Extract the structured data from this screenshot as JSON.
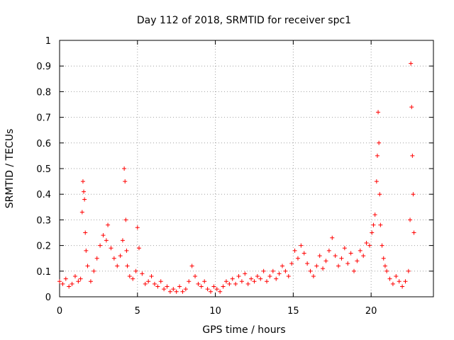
{
  "chart_data": {
    "type": "scatter",
    "title": "Day 112 of 2018, SRMTID for receiver spc1",
    "xlabel": "GPS time / hours",
    "ylabel": "SRMTID / TECUs",
    "xlim": [
      0,
      24
    ],
    "ylim": [
      0,
      1
    ],
    "x_ticks": [
      0,
      5,
      10,
      15,
      20
    ],
    "x_tick_labels": [
      "0",
      "5",
      "10",
      "15",
      "20"
    ],
    "y_ticks": [
      0,
      0.1,
      0.2,
      0.3,
      0.4,
      0.5,
      0.6,
      0.7,
      0.8,
      0.9,
      1
    ],
    "y_tick_labels": [
      "0",
      "0.1",
      "0.2",
      "0.3",
      "0.4",
      "0.5",
      "0.6",
      "0.7",
      "0.8",
      "0.9",
      "1"
    ],
    "grid": true,
    "marker": "+",
    "color": "#ff0000",
    "series": [
      {
        "name": "spc1",
        "x": [
          0.0,
          0.2,
          0.4,
          0.6,
          0.8,
          1.0,
          1.2,
          1.35,
          1.45,
          1.5,
          1.55,
          1.6,
          1.65,
          1.7,
          1.8,
          2.0,
          2.2,
          2.4,
          2.6,
          2.8,
          3.0,
          3.1,
          3.3,
          3.5,
          3.7,
          3.9,
          4.05,
          4.15,
          4.2,
          4.25,
          4.3,
          4.35,
          4.5,
          4.7,
          4.9,
          5.0,
          5.1,
          5.3,
          5.5,
          5.7,
          5.9,
          6.1,
          6.3,
          6.5,
          6.7,
          6.9,
          7.1,
          7.3,
          7.5,
          7.7,
          7.9,
          8.1,
          8.3,
          8.5,
          8.7,
          8.9,
          9.1,
          9.3,
          9.5,
          9.7,
          9.9,
          10.1,
          10.3,
          10.5,
          10.7,
          10.9,
          11.1,
          11.3,
          11.5,
          11.7,
          11.9,
          12.1,
          12.3,
          12.5,
          12.7,
          12.9,
          13.1,
          13.3,
          13.5,
          13.7,
          13.9,
          14.1,
          14.3,
          14.5,
          14.7,
          14.9,
          15.1,
          15.3,
          15.5,
          15.7,
          15.9,
          16.1,
          16.3,
          16.5,
          16.7,
          16.9,
          17.1,
          17.3,
          17.5,
          17.7,
          17.9,
          18.1,
          18.3,
          18.5,
          18.7,
          18.9,
          19.1,
          19.3,
          19.5,
          19.7,
          19.9,
          20.05,
          20.15,
          20.25,
          20.35,
          20.4,
          20.45,
          20.5,
          20.55,
          20.6,
          20.7,
          20.8,
          20.9,
          21.0,
          21.2,
          21.4,
          21.6,
          21.8,
          22.0,
          22.2,
          22.4,
          22.5,
          22.55,
          22.6,
          22.65,
          22.7,
          22.75
        ],
        "y": [
          0.06,
          0.05,
          0.07,
          0.04,
          0.05,
          0.08,
          0.06,
          0.07,
          0.33,
          0.45,
          0.41,
          0.38,
          0.25,
          0.18,
          0.12,
          0.06,
          0.1,
          0.15,
          0.2,
          0.24,
          0.22,
          0.28,
          0.19,
          0.15,
          0.12,
          0.16,
          0.22,
          0.5,
          0.45,
          0.3,
          0.18,
          0.12,
          0.08,
          0.07,
          0.1,
          0.27,
          0.19,
          0.09,
          0.05,
          0.06,
          0.08,
          0.05,
          0.04,
          0.06,
          0.03,
          0.04,
          0.02,
          0.03,
          0.02,
          0.04,
          0.02,
          0.03,
          0.06,
          0.12,
          0.08,
          0.05,
          0.04,
          0.06,
          0.03,
          0.02,
          0.04,
          0.03,
          0.02,
          0.04,
          0.06,
          0.05,
          0.07,
          0.05,
          0.08,
          0.06,
          0.09,
          0.05,
          0.07,
          0.06,
          0.08,
          0.07,
          0.1,
          0.06,
          0.08,
          0.1,
          0.07,
          0.09,
          0.12,
          0.1,
          0.08,
          0.13,
          0.18,
          0.15,
          0.2,
          0.17,
          0.13,
          0.1,
          0.08,
          0.12,
          0.16,
          0.11,
          0.14,
          0.18,
          0.23,
          0.16,
          0.12,
          0.15,
          0.19,
          0.13,
          0.17,
          0.1,
          0.14,
          0.18,
          0.16,
          0.21,
          0.2,
          0.25,
          0.28,
          0.32,
          0.45,
          0.55,
          0.72,
          0.6,
          0.4,
          0.28,
          0.2,
          0.15,
          0.12,
          0.1,
          0.07,
          0.05,
          0.08,
          0.06,
          0.04,
          0.06,
          0.1,
          0.3,
          0.91,
          0.74,
          0.55,
          0.4,
          0.25
        ]
      }
    ]
  }
}
